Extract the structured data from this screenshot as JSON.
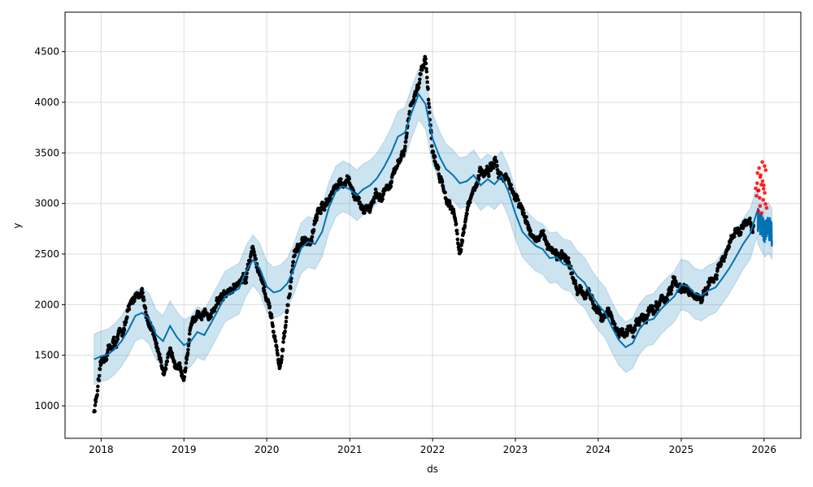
{
  "chart_data": {
    "type": "line",
    "xlabel": "ds",
    "ylabel": "y",
    "xlim": [
      "2017-07-26",
      "2026-06-12"
    ],
    "ylim": [
      680,
      4890
    ],
    "grid": true,
    "x_ticks": [
      "2018",
      "2019",
      "2020",
      "2021",
      "2022",
      "2023",
      "2024",
      "2025",
      "2026"
    ],
    "y_ticks": [
      1000,
      1500,
      2000,
      2500,
      3000,
      3500,
      4000,
      4500
    ],
    "colors": {
      "observed": "#000000",
      "forecast": "#0072b2",
      "interval": "#0072b2",
      "holdout": "#ff0000",
      "grid": "#dddddd"
    },
    "series": [
      {
        "role": "forecast",
        "x": [
          "2017-12-01",
          "2018-01-01",
          "2018-02-01",
          "2018-03-01",
          "2018-04-01",
          "2018-05-01",
          "2018-06-01",
          "2018-07-01",
          "2018-08-01",
          "2018-09-01",
          "2018-10-01",
          "2018-11-01",
          "2018-12-01",
          "2019-01-01",
          "2019-02-01",
          "2019-03-01",
          "2019-04-01",
          "2019-05-01",
          "2019-06-01",
          "2019-07-01",
          "2019-08-01",
          "2019-09-01",
          "2019-10-01",
          "2019-11-01",
          "2019-12-01",
          "2020-01-01",
          "2020-02-01",
          "2020-03-01",
          "2020-04-01",
          "2020-05-01",
          "2020-06-01",
          "2020-07-01",
          "2020-08-01",
          "2020-09-01",
          "2020-10-01",
          "2020-11-01",
          "2020-12-01",
          "2021-01-01",
          "2021-02-01",
          "2021-03-01",
          "2021-04-01",
          "2021-05-01",
          "2021-06-01",
          "2021-07-01",
          "2021-08-01",
          "2021-09-01",
          "2021-10-01",
          "2021-11-01",
          "2021-12-01",
          "2022-01-01",
          "2022-02-01",
          "2022-03-01",
          "2022-04-01",
          "2022-05-01",
          "2022-06-01",
          "2022-07-01",
          "2022-08-01",
          "2022-09-01",
          "2022-10-01",
          "2022-11-01",
          "2022-12-01",
          "2023-01-01",
          "2023-02-01",
          "2023-03-01",
          "2023-04-01",
          "2023-05-01",
          "2023-06-01",
          "2023-07-01",
          "2023-08-01",
          "2023-09-01",
          "2023-10-01",
          "2023-11-01",
          "2023-12-01",
          "2024-01-01",
          "2024-02-01",
          "2024-03-01",
          "2024-04-01",
          "2024-05-01",
          "2024-06-01",
          "2024-07-01",
          "2024-08-01",
          "2024-09-01",
          "2024-10-01",
          "2024-11-01",
          "2024-12-01",
          "2025-01-01",
          "2025-02-01",
          "2025-03-01",
          "2025-04-01",
          "2025-05-01",
          "2025-06-01",
          "2025-07-01",
          "2025-08-01",
          "2025-09-01",
          "2025-10-01",
          "2025-11-01",
          "2025-12-01"
        ],
        "y": [
          1460,
          1490,
          1510,
          1560,
          1640,
          1750,
          1890,
          1920,
          1860,
          1700,
          1640,
          1790,
          1680,
          1600,
          1640,
          1730,
          1700,
          1820,
          1950,
          2080,
          2120,
          2160,
          2330,
          2440,
          2360,
          2180,
          2120,
          2140,
          2210,
          2360,
          2560,
          2620,
          2600,
          2720,
          2960,
          3120,
          3170,
          3140,
          3080,
          3140,
          3180,
          3250,
          3360,
          3490,
          3660,
          3700,
          3900,
          4080,
          3980,
          3640,
          3460,
          3340,
          3280,
          3200,
          3220,
          3280,
          3180,
          3240,
          3190,
          3270,
          3120,
          2900,
          2720,
          2650,
          2580,
          2550,
          2460,
          2470,
          2400,
          2380,
          2280,
          2220,
          2100,
          2000,
          1920,
          1780,
          1650,
          1580,
          1620,
          1760,
          1840,
          1860,
          1950,
          2020,
          2080,
          2200,
          2180,
          2110,
          2090,
          2140,
          2170,
          2260,
          2360,
          2480,
          2600,
          2700,
          2920
        ]
      },
      {
        "role": "forecast-future",
        "x": [
          "2025-12-05",
          "2025-12-20",
          "2026-01-05",
          "2026-01-20",
          "2026-02-05"
        ],
        "y": [
          2850,
          2780,
          2720,
          2760,
          2700
        ]
      }
    ],
    "interval_half_width": 250,
    "observed": {
      "anchors_x": [
        "2017-12-01",
        "2018-01-01",
        "2018-02-01",
        "2018-04-01",
        "2018-06-01",
        "2018-07-01",
        "2018-08-01",
        "2018-10-01",
        "2018-12-01",
        "2019-01-01",
        "2019-02-01",
        "2019-04-01",
        "2019-06-01",
        "2019-08-01",
        "2019-10-01",
        "2019-11-01",
        "2020-01-01",
        "2020-03-01",
        "2020-05-01",
        "2020-07-01",
        "2020-09-01",
        "2020-11-01",
        "2021-01-01",
        "2021-03-01",
        "2021-05-01",
        "2021-07-01",
        "2021-09-01",
        "2021-10-01",
        "2021-11-01",
        "2021-12-01",
        "2022-01-01",
        "2022-03-01",
        "2022-04-01",
        "2022-05-01",
        "2022-06-01",
        "2022-08-01",
        "2022-10-01",
        "2022-12-01",
        "2023-02-01",
        "2023-04-01",
        "2023-06-01",
        "2023-08-01",
        "2023-10-01",
        "2023-12-01",
        "2024-02-01",
        "2024-04-01",
        "2024-06-01",
        "2024-08-01",
        "2024-10-01",
        "2024-12-01",
        "2025-02-01",
        "2025-04-01",
        "2025-06-01",
        "2025-08-01",
        "2025-10-01",
        "2025-11-15"
      ],
      "anchors_y": [
        950,
        1350,
        1550,
        1700,
        2100,
        2150,
        1800,
        1400,
        1500,
        1300,
        1800,
        1850,
        2050,
        2150,
        2300,
        2600,
        2050,
        1350,
        2500,
        2600,
        3000,
        3200,
        3150,
        2950,
        3050,
        3200,
        3500,
        4000,
        4200,
        4500,
        3500,
        3100,
        3000,
        2550,
        2900,
        3300,
        3350,
        3250,
        2900,
        2650,
        2600,
        2450,
        2100,
        2050,
        1950,
        1750,
        1700,
        1950,
        2000,
        2200,
        2100,
        2050,
        2250,
        2550,
        2800,
        2750
      ],
      "point_count": 1900,
      "noise": 90
    },
    "holdout": {
      "x": [
        "2025-12-01",
        "2025-12-08",
        "2025-12-15",
        "2025-12-22",
        "2026-01-01",
        "2026-01-06"
      ],
      "y": [
        3150,
        3200,
        3130,
        3260,
        3220,
        3180
      ]
    }
  }
}
